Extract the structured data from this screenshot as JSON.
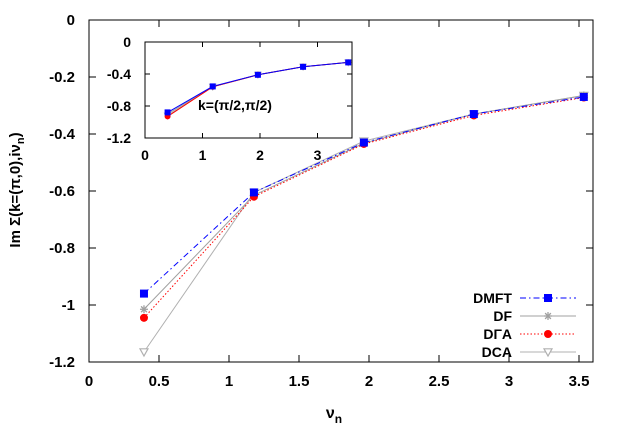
{
  "chart_data": [
    {
      "type": "line",
      "title": "",
      "xlabel": "ν",
      "xlabel_sub": "n",
      "ylabel": "Im Σ(k=(π,0),iν",
      "ylabel_sub": "n",
      "ylabel_end": ")",
      "xlim": [
        0,
        3.6
      ],
      "ylim": [
        -1.2,
        0
      ],
      "xticks": [
        0,
        0.5,
        1,
        1.5,
        2,
        2.5,
        3,
        3.5
      ],
      "xtick_labels": [
        "0",
        "0.5",
        "1",
        "1.5",
        "2",
        "2.5",
        "3",
        "3.5"
      ],
      "yticks": [
        -1.2,
        -1,
        -0.8,
        -0.6,
        -0.4,
        -0.2,
        0
      ],
      "ytick_labels": [
        "-1.2",
        "-1",
        "-0.8",
        "-0.6",
        "-0.4",
        "-0.2",
        "0"
      ],
      "legend_position": "bottom-right",
      "series": [
        {
          "name": "DMFT",
          "color": "#0000ff",
          "marker": "square",
          "line": "dash-dot",
          "x": [
            0.3927,
            1.1781,
            1.9635,
            2.7489,
            3.5343
          ],
          "y": [
            -0.96,
            -0.605,
            -0.43,
            -0.33,
            -0.27
          ]
        },
        {
          "name": "DF",
          "color": "#a0a0a0",
          "marker": "star",
          "line": "solid",
          "x": [
            0.3927,
            1.1781,
            1.9635,
            2.7489,
            3.5343
          ],
          "y": [
            -1.015,
            -0.615,
            -0.432,
            -0.33,
            -0.265
          ]
        },
        {
          "name": "DΓA",
          "color": "#ff0000",
          "marker": "circle",
          "line": "dotted",
          "x": [
            0.3927,
            1.1781,
            1.9635,
            2.7489,
            3.5343
          ],
          "y": [
            -1.045,
            -0.62,
            -0.435,
            -0.335,
            -0.272
          ]
        },
        {
          "name": "DCA",
          "color": "#b0b0b0",
          "marker": "triangle-down",
          "line": "solid",
          "x": [
            0.3927,
            1.1781,
            1.9635,
            2.7489,
            3.5343
          ],
          "y": [
            -1.165,
            -0.605,
            -0.425,
            -0.33,
            -0.265
          ]
        }
      ]
    },
    {
      "type": "line",
      "title": "",
      "annotation": "k=(π/2,π/2)",
      "xlim": [
        0,
        3.6
      ],
      "ylim": [
        -1.2,
        0
      ],
      "xticks": [
        0,
        1,
        2,
        3
      ],
      "xtick_labels": [
        "0",
        "1",
        "2",
        "3"
      ],
      "yticks": [
        -1.2,
        -0.8,
        -0.4,
        0
      ],
      "ytick_labels": [
        "-1.2",
        "-0.8",
        "-0.4",
        "0"
      ],
      "series": [
        {
          "name": "DMFT",
          "color": "#0000ff",
          "marker": "square",
          "x": [
            0.3927,
            1.1781,
            1.9635,
            2.7489,
            3.5343
          ],
          "y": [
            -0.88,
            -0.555,
            -0.41,
            -0.31,
            -0.255
          ]
        },
        {
          "name": "DF",
          "color": "#a0a0a0",
          "marker": "star",
          "x": [
            0.3927,
            1.1781,
            1.9635,
            2.7489,
            3.5343
          ],
          "y": [
            -0.9,
            -0.56,
            -0.41,
            -0.31,
            -0.255
          ]
        },
        {
          "name": "DΓA",
          "color": "#ff0000",
          "marker": "circle",
          "x": [
            0.3927,
            1.1781,
            1.9635,
            2.7489,
            3.5343
          ],
          "y": [
            -0.93,
            -0.56,
            -0.41,
            -0.31,
            -0.255
          ]
        },
        {
          "name": "DCA",
          "color": "#b0b0b0",
          "marker": "triangle-down",
          "x": [
            0.3927,
            1.1781,
            1.9635,
            2.7489,
            3.5343
          ],
          "y": [
            -0.92,
            -0.56,
            -0.41,
            -0.31,
            -0.255
          ]
        }
      ]
    }
  ]
}
